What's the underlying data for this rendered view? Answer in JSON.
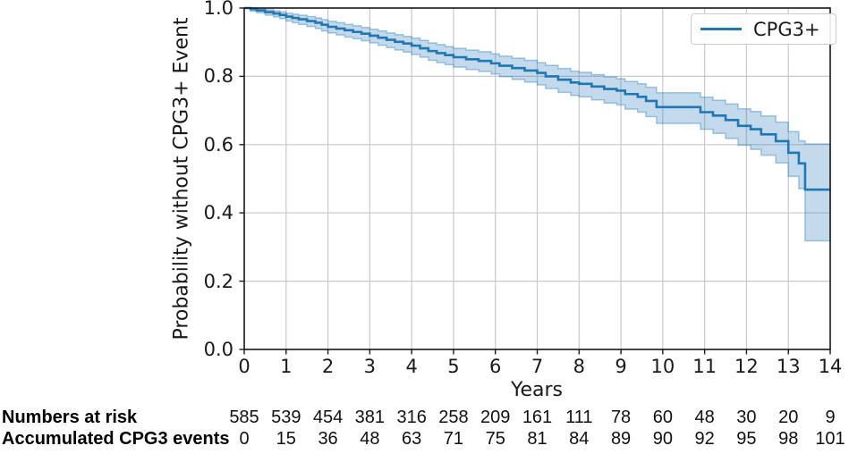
{
  "figure": {
    "ylabel": "Probability without CPG3+ Event",
    "xlabel": "Years",
    "legend_label": "CPG3+"
  },
  "risk_table": {
    "rows": [
      {
        "label": "Numbers at risk",
        "values": [
          "585",
          "539",
          "454",
          "381",
          "316",
          "258",
          "209",
          "161",
          "111",
          "78",
          "60",
          "48",
          "30",
          "20",
          "9"
        ]
      },
      {
        "label": "Accumulated CPG3 events",
        "values": [
          "0",
          "15",
          "36",
          "48",
          "63",
          "71",
          "75",
          "81",
          "84",
          "89",
          "90",
          "92",
          "95",
          "98",
          "101"
        ]
      }
    ]
  },
  "chart_data": {
    "type": "line",
    "subtype": "kaplan-meier-step",
    "title": "",
    "xlabel": "Years",
    "ylabel": "Probability without CPG3+ Event",
    "xlim": [
      0,
      14
    ],
    "ylim": [
      0.0,
      1.0
    ],
    "xticks": [
      "0",
      "1",
      "2",
      "3",
      "4",
      "5",
      "6",
      "7",
      "8",
      "9",
      "10",
      "11",
      "12",
      "13",
      "14"
    ],
    "yticks": [
      "0.0",
      "0.2",
      "0.4",
      "0.6",
      "0.8",
      "1.0"
    ],
    "grid": true,
    "legend_position": "upper right",
    "colors": {
      "line": "#1f77b4",
      "band": "#1f77b4",
      "band_alpha": 0.27,
      "grid": "#c9c9c9",
      "spine": "#1a1a1a"
    },
    "series": [
      {
        "name": "CPG3+",
        "step": "post",
        "points_format": [
          "time_years",
          "survival",
          "ci_lower",
          "ci_upper"
        ],
        "points": [
          [
            0.0,
            1.0,
            1.0,
            1.0
          ],
          [
            0.15,
            0.997,
            0.991,
            1.0
          ],
          [
            0.3,
            0.993,
            0.986,
            0.998
          ],
          [
            0.5,
            0.988,
            0.979,
            0.995
          ],
          [
            0.7,
            0.984,
            0.974,
            0.992
          ],
          [
            0.85,
            0.98,
            0.969,
            0.989
          ],
          [
            1.0,
            0.975,
            0.962,
            0.985
          ],
          [
            1.15,
            0.971,
            0.957,
            0.982
          ],
          [
            1.3,
            0.967,
            0.952,
            0.979
          ],
          [
            1.5,
            0.962,
            0.946,
            0.975
          ],
          [
            1.7,
            0.957,
            0.94,
            0.971
          ],
          [
            1.85,
            0.951,
            0.933,
            0.966
          ],
          [
            2.0,
            0.945,
            0.927,
            0.961
          ],
          [
            2.2,
            0.94,
            0.921,
            0.957
          ],
          [
            2.4,
            0.935,
            0.915,
            0.952
          ],
          [
            2.6,
            0.93,
            0.91,
            0.948
          ],
          [
            2.8,
            0.925,
            0.904,
            0.943
          ],
          [
            3.0,
            0.919,
            0.898,
            0.938
          ],
          [
            3.2,
            0.913,
            0.891,
            0.933
          ],
          [
            3.4,
            0.907,
            0.884,
            0.927
          ],
          [
            3.6,
            0.901,
            0.877,
            0.922
          ],
          [
            3.8,
            0.896,
            0.871,
            0.917
          ],
          [
            4.0,
            0.89,
            0.864,
            0.912
          ],
          [
            4.2,
            0.882,
            0.856,
            0.905
          ],
          [
            4.4,
            0.874,
            0.847,
            0.898
          ],
          [
            4.6,
            0.868,
            0.84,
            0.893
          ],
          [
            4.8,
            0.862,
            0.834,
            0.887
          ],
          [
            5.0,
            0.856,
            0.827,
            0.882
          ],
          [
            5.3,
            0.85,
            0.82,
            0.877
          ],
          [
            5.6,
            0.845,
            0.814,
            0.872
          ],
          [
            5.9,
            0.838,
            0.807,
            0.866
          ],
          [
            6.1,
            0.831,
            0.799,
            0.859
          ],
          [
            6.4,
            0.824,
            0.791,
            0.853
          ],
          [
            6.7,
            0.817,
            0.783,
            0.847
          ],
          [
            7.0,
            0.81,
            0.775,
            0.84
          ],
          [
            7.2,
            0.8,
            0.764,
            0.832
          ],
          [
            7.5,
            0.79,
            0.753,
            0.823
          ],
          [
            7.8,
            0.782,
            0.744,
            0.815
          ],
          [
            8.0,
            0.778,
            0.74,
            0.812
          ],
          [
            8.3,
            0.77,
            0.731,
            0.805
          ],
          [
            8.6,
            0.763,
            0.722,
            0.798
          ],
          [
            8.9,
            0.758,
            0.716,
            0.793
          ],
          [
            9.1,
            0.748,
            0.704,
            0.785
          ],
          [
            9.4,
            0.74,
            0.695,
            0.778
          ],
          [
            9.6,
            0.728,
            0.682,
            0.768
          ],
          [
            9.85,
            0.71,
            0.662,
            0.752
          ],
          [
            10.9,
            0.695,
            0.645,
            0.739
          ],
          [
            11.2,
            0.685,
            0.633,
            0.73
          ],
          [
            11.5,
            0.672,
            0.618,
            0.719
          ],
          [
            11.8,
            0.655,
            0.598,
            0.705
          ],
          [
            12.1,
            0.645,
            0.586,
            0.697
          ],
          [
            12.35,
            0.63,
            0.569,
            0.684
          ],
          [
            12.7,
            0.61,
            0.546,
            0.666
          ],
          [
            13.0,
            0.576,
            0.507,
            0.638
          ],
          [
            13.25,
            0.545,
            0.471,
            0.611
          ],
          [
            13.4,
            0.468,
            0.318,
            0.602
          ],
          [
            14.0,
            0.468,
            0.318,
            0.602
          ]
        ]
      }
    ]
  },
  "layout_note": ""
}
